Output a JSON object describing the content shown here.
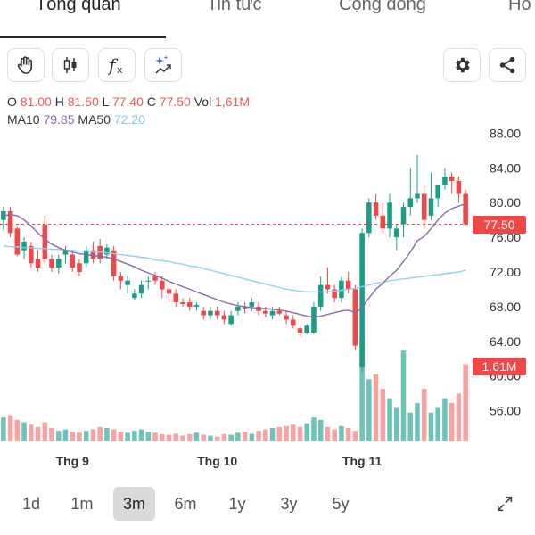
{
  "tabs": [
    {
      "label": "Tổng quan",
      "active": true
    },
    {
      "label": "Tin tức",
      "active": false
    },
    {
      "label": "Cộng đồng",
      "active": false
    },
    {
      "label": "Hồ",
      "active": false
    }
  ],
  "toolbar": {
    "icons": [
      "hand-icon",
      "candlestick-icon",
      "function-icon",
      "sparkle-chart-icon"
    ],
    "right_icons": [
      "gear-icon",
      "share-icon"
    ]
  },
  "ohlc": {
    "o_label": "O",
    "o_value": "81.00",
    "h_label": "H",
    "h_value": "81.50",
    "l_label": "L",
    "l_value": "77.40",
    "c_label": "C",
    "c_value": "77.50",
    "vol_label": "Vol",
    "vol_value": "1,61M"
  },
  "ma": {
    "ma10_label": "MA10",
    "ma10_value": "79.85",
    "ma50_label": "MA50",
    "ma50_value": "72.20"
  },
  "colors": {
    "up": "#1a9e86",
    "down": "#f04848",
    "vol_up": "#6ec3b8",
    "vol_down": "#f5a3a3",
    "ma10": "#8a6aa8",
    "ma50": "#8fd0f0"
  },
  "chart_data": {
    "type": "candlestick",
    "y_ticks": [
      "88.00",
      "84.00",
      "80.00",
      "76.00",
      "72.00",
      "68.00",
      "64.00",
      "60.00",
      "56.00"
    ],
    "ylim": [
      54,
      90
    ],
    "x_ticks": [
      {
        "label": "Thg 9",
        "index": 10
      },
      {
        "label": "Thg 10",
        "index": 31
      },
      {
        "label": "Thg 11",
        "index": 52
      }
    ],
    "last_price": "77.50",
    "last_volume": "1.61M",
    "candles": [
      [
        78.0,
        79.5,
        76.8,
        79.0
      ],
      [
        79.0,
        79.5,
        76.0,
        76.5
      ],
      [
        77.0,
        77.2,
        73.8,
        74.0
      ],
      [
        74.5,
        76.0,
        73.5,
        75.5
      ],
      [
        75.0,
        75.5,
        72.5,
        73.0
      ],
      [
        73.5,
        74.5,
        72.0,
        72.5
      ],
      [
        77.5,
        78.5,
        73.0,
        73.5
      ],
      [
        73.5,
        74.0,
        72.0,
        72.5
      ],
      [
        72.5,
        74.0,
        71.8,
        73.5
      ],
      [
        74.0,
        75.0,
        73.0,
        74.5
      ],
      [
        74.0,
        74.5,
        72.0,
        72.5
      ],
      [
        73.0,
        73.5,
        71.5,
        72.0
      ],
      [
        73.0,
        75.0,
        72.5,
        74.5
      ],
      [
        74.5,
        75.5,
        73.0,
        73.5
      ],
      [
        75.0,
        75.8,
        73.0,
        73.5
      ],
      [
        74.0,
        75.2,
        73.5,
        74.8
      ],
      [
        74.5,
        75.0,
        71.0,
        71.5
      ],
      [
        71.5,
        72.0,
        70.0,
        71.0
      ],
      [
        70.5,
        71.5,
        69.5,
        71.0
      ],
      [
        69.0,
        70.0,
        68.8,
        69.5
      ],
      [
        69.5,
        71.0,
        69.0,
        70.5
      ],
      [
        71.0,
        71.5,
        70.0,
        71.0
      ],
      [
        71.5,
        72.0,
        70.5,
        71.0
      ],
      [
        71.0,
        71.5,
        69.0,
        70.0
      ],
      [
        70.0,
        70.5,
        68.5,
        69.5
      ],
      [
        69.5,
        70.0,
        68.0,
        68.5
      ],
      [
        68.5,
        69.0,
        68.0,
        68.3
      ],
      [
        68.5,
        69.0,
        67.5,
        68.0
      ],
      [
        68.0,
        68.5,
        67.5,
        68.2
      ],
      [
        67.5,
        68.0,
        66.5,
        67.0
      ],
      [
        67.0,
        68.0,
        66.5,
        67.5
      ],
      [
        67.5,
        68.0,
        66.5,
        67.0
      ],
      [
        67.0,
        67.5,
        66.0,
        66.5
      ],
      [
        66.0,
        67.5,
        65.8,
        67.0
      ],
      [
        67.5,
        68.5,
        67.0,
        68.0
      ],
      [
        68.0,
        68.5,
        67.2,
        67.8
      ],
      [
        68.0,
        69.0,
        67.5,
        68.5
      ],
      [
        68.0,
        68.5,
        67.0,
        67.5
      ],
      [
        67.5,
        68.0,
        66.8,
        67.2
      ],
      [
        67.0,
        68.0,
        66.5,
        67.5
      ],
      [
        67.5,
        68.0,
        67.0,
        67.2
      ],
      [
        67.0,
        67.5,
        66.0,
        66.5
      ],
      [
        66.5,
        67.0,
        65.5,
        65.8
      ],
      [
        65.5,
        66.0,
        64.5,
        65.0
      ],
      [
        65.0,
        66.0,
        64.8,
        65.8
      ],
      [
        65.0,
        68.5,
        64.8,
        68.0
      ],
      [
        68.0,
        71.5,
        67.5,
        70.5
      ],
      [
        70.5,
        72.5,
        69.5,
        70.0
      ],
      [
        70.0,
        70.5,
        68.5,
        69.0
      ],
      [
        69.0,
        71.5,
        68.5,
        71.0
      ],
      [
        71.0,
        72.0,
        69.5,
        70.0
      ],
      [
        70.0,
        70.5,
        63.0,
        63.5
      ],
      [
        61.0,
        77.0,
        60.5,
        76.5
      ],
      [
        76.5,
        80.5,
        76.0,
        80.0
      ],
      [
        80.0,
        81.0,
        78.0,
        78.5
      ],
      [
        78.5,
        80.0,
        76.5,
        77.0
      ],
      [
        77.0,
        81.0,
        76.0,
        80.0
      ],
      [
        76.0,
        77.5,
        74.5,
        77.0
      ],
      [
        77.5,
        80.0,
        76.0,
        79.5
      ],
      [
        79.5,
        84.0,
        78.5,
        80.5
      ],
      [
        80.5,
        85.5,
        80.0,
        81.0
      ],
      [
        81.0,
        82.0,
        77.0,
        78.0
      ],
      [
        78.5,
        83.5,
        78.0,
        80.5
      ],
      [
        80.5,
        82.0,
        79.5,
        82.0
      ],
      [
        82.0,
        84.0,
        81.5,
        83.0
      ],
      [
        83.0,
        83.5,
        81.0,
        82.5
      ],
      [
        82.5,
        83.0,
        80.0,
        81.0
      ],
      [
        81.0,
        81.5,
        77.4,
        77.5
      ]
    ],
    "volumes": [
      0.5,
      0.55,
      0.45,
      0.4,
      0.35,
      0.3,
      0.4,
      0.28,
      0.22,
      0.25,
      0.2,
      0.18,
      0.22,
      0.25,
      0.3,
      0.28,
      0.25,
      0.2,
      0.18,
      0.22,
      0.25,
      0.2,
      0.18,
      0.15,
      0.14,
      0.16,
      0.12,
      0.15,
      0.18,
      0.14,
      0.12,
      0.1,
      0.15,
      0.14,
      0.18,
      0.2,
      0.16,
      0.22,
      0.25,
      0.28,
      0.3,
      0.32,
      0.35,
      0.3,
      0.38,
      0.5,
      0.45,
      0.3,
      0.25,
      0.32,
      0.28,
      0.22,
      2.2,
      1.3,
      1.4,
      1.1,
      0.9,
      0.7,
      1.9,
      0.6,
      0.8,
      1.1,
      0.6,
      0.7,
      0.9,
      0.8,
      1.0,
      1.61
    ],
    "ma10": [
      78.5,
      78.6,
      78.5,
      78.0,
      77.3,
      76.5,
      75.8,
      75.2,
      74.8,
      74.5,
      74.3,
      74.1,
      74.0,
      73.9,
      73.8,
      73.7,
      73.5,
      73.2,
      72.9,
      72.6,
      72.2,
      71.9,
      71.6,
      71.3,
      70.9,
      70.6,
      70.3,
      70.0,
      69.7,
      69.4,
      69.1,
      68.8,
      68.5,
      68.3,
      68.1,
      68.0,
      67.9,
      67.8,
      67.8,
      67.7,
      67.6,
      67.5,
      67.3,
      67.1,
      66.9,
      66.8,
      66.9,
      67.1,
      67.3,
      67.5,
      67.6,
      67.3,
      67.9,
      69.0,
      70.0,
      70.7,
      71.5,
      72.2,
      73.2,
      74.3,
      75.6,
      76.1,
      77.0,
      78.0,
      78.8,
      79.3,
      79.6,
      79.85
    ],
    "ma50": [
      75.0,
      74.9,
      74.9,
      74.8,
      74.8,
      74.7,
      74.7,
      74.6,
      74.6,
      74.5,
      74.5,
      74.4,
      74.4,
      74.3,
      74.3,
      74.2,
      74.1,
      74.0,
      73.9,
      73.8,
      73.7,
      73.6,
      73.4,
      73.3,
      73.2,
      73.0,
      72.9,
      72.7,
      72.6,
      72.4,
      72.2,
      72.0,
      71.8,
      71.6,
      71.4,
      71.2,
      71.0,
      70.8,
      70.6,
      70.4,
      70.2,
      70.0,
      69.9,
      69.8,
      69.7,
      69.7,
      69.7,
      69.7,
      69.8,
      69.9,
      70.0,
      70.1,
      70.3,
      70.5,
      70.7,
      70.8,
      71.0,
      71.1,
      71.2,
      71.3,
      71.4,
      71.5,
      71.6,
      71.7,
      71.8,
      71.9,
      72.0,
      72.2
    ]
  },
  "ranges": [
    {
      "label": "1d",
      "active": false
    },
    {
      "label": "1m",
      "active": false
    },
    {
      "label": "3m",
      "active": true
    },
    {
      "label": "6m",
      "active": false
    },
    {
      "label": "1y",
      "active": false
    },
    {
      "label": "3y",
      "active": false
    },
    {
      "label": "5y",
      "active": false
    }
  ],
  "fullscreen_icon": "expand-icon"
}
